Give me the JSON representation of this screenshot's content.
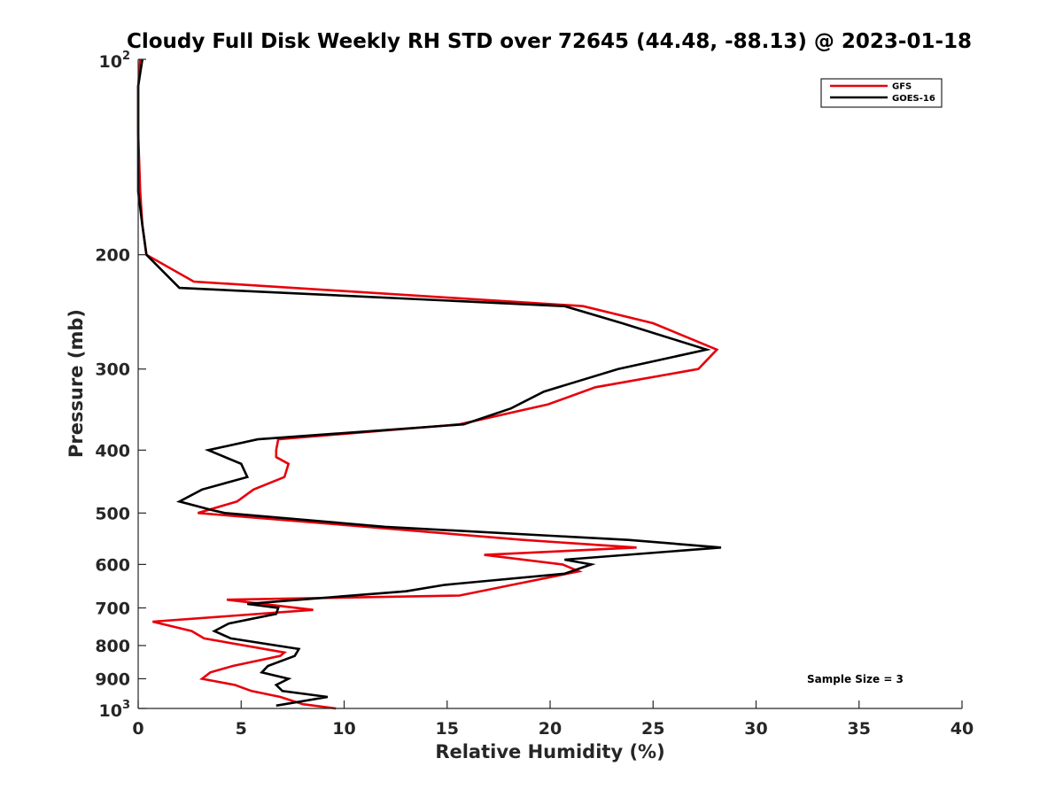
{
  "chart_data": {
    "type": "line",
    "title": "Cloudy Full Disk Weekly RH STD over 72645 (44.48, -88.13) @ 2023-01-18",
    "xlabel": "Relative Humidity (%)",
    "ylabel": "Pressure (mb)",
    "xlim": [
      0,
      40
    ],
    "ylim": [
      100,
      1000
    ],
    "y_scale": "log",
    "y_reversed": true,
    "x_ticks": [
      "0",
      "5",
      "10",
      "15",
      "20",
      "25",
      "30",
      "35",
      "40"
    ],
    "y_ticks": [
      {
        "value": 200,
        "label": "200"
      },
      {
        "value": 300,
        "label": "300"
      },
      {
        "value": 400,
        "label": "400"
      },
      {
        "value": 500,
        "label": "500"
      },
      {
        "value": 600,
        "label": "600"
      },
      {
        "value": 700,
        "label": "700"
      },
      {
        "value": 800,
        "label": "800"
      },
      {
        "value": 900,
        "label": "900"
      }
    ],
    "y_decade_ticks": [
      {
        "value": 100,
        "base": "10",
        "exp": "2"
      },
      {
        "value": 1000,
        "base": "10",
        "exp": "3"
      }
    ],
    "grid": false,
    "legend_position": "top-right",
    "annotation": "Sample Size = 3",
    "series": [
      {
        "name": "GFS",
        "color": "#e8000b",
        "x": [
          0.1,
          0.0,
          0.0,
          0.1,
          0.2,
          0.4,
          2.7,
          21.6,
          25.0,
          28.1,
          27.2,
          22.2,
          19.9,
          15.6,
          6.8,
          6.7,
          6.7,
          7.3,
          7.1,
          5.6,
          4.8,
          2.9,
          9.5,
          18.7,
          24.2,
          16.8,
          20.6,
          21.4,
          18.7,
          15.6,
          4.3,
          8.5,
          0.7,
          2.6,
          3.2,
          7.1,
          6.9,
          4.6,
          3.5,
          3.1,
          4.7,
          5.5,
          6.9,
          8.0,
          9.6
        ],
        "y": [
          100,
          110,
          130,
          160,
          180,
          200,
          220,
          240,
          255,
          280,
          300,
          320,
          340,
          365,
          385,
          400,
          410,
          420,
          440,
          460,
          480,
          500,
          520,
          550,
          565,
          580,
          600,
          615,
          640,
          670,
          680,
          705,
          735,
          760,
          780,
          820,
          830,
          860,
          880,
          900,
          920,
          940,
          960,
          985,
          1000
        ]
      },
      {
        "name": "GOES-16",
        "color": "#000000",
        "x": [
          0.2,
          0.0,
          0.0,
          0.0,
          0.2,
          0.4,
          2.0,
          20.7,
          23.5,
          27.6,
          23.3,
          19.7,
          18.1,
          15.8,
          5.8,
          3.4,
          5.0,
          5.3,
          3.1,
          2.0,
          3.6,
          4.2,
          12.0,
          23.8,
          28.3,
          20.7,
          22.0,
          20.7,
          14.9,
          13.0,
          5.3,
          6.8,
          6.7,
          4.4,
          3.7,
          4.5,
          7.8,
          7.6,
          6.3,
          6.0,
          7.3,
          6.7,
          7.0,
          9.2,
          6.7
        ],
        "y": [
          100,
          110,
          130,
          160,
          180,
          200,
          225,
          240,
          255,
          280,
          300,
          325,
          345,
          365,
          385,
          400,
          420,
          440,
          460,
          480,
          495,
          500,
          525,
          550,
          565,
          590,
          600,
          620,
          645,
          660,
          690,
          700,
          715,
          740,
          760,
          780,
          810,
          830,
          860,
          880,
          900,
          920,
          940,
          960,
          990
        ]
      }
    ]
  }
}
